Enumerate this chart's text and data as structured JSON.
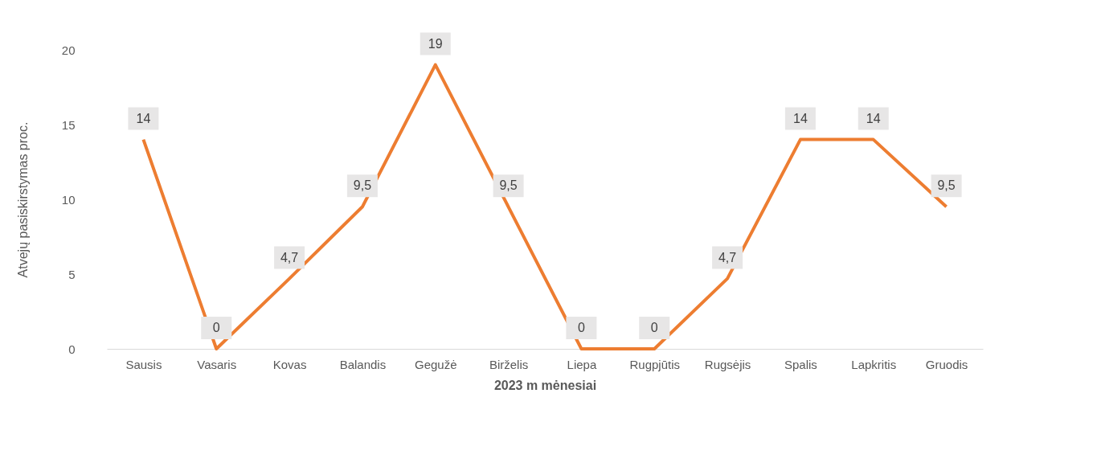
{
  "chart_data": {
    "type": "line",
    "xlabel": "2023 m mėnesiai",
    "ylabel": "Atvejų pasiskirstymas proc.",
    "categories": [
      "Sausis",
      "Vasaris",
      "Kovas",
      "Balandis",
      "Gegužė",
      "Birželis",
      "Liepa",
      "Rugpjūtis",
      "Rugsėjis",
      "Spalis",
      "Lapkritis",
      "Gruodis"
    ],
    "series": [
      {
        "color": "#ed7d31",
        "values": [
          14,
          0,
          4.7,
          9.5,
          19,
          9.5,
          0,
          0,
          4.7,
          14,
          14,
          9.5
        ],
        "value_labels": [
          "14",
          "0",
          "4,7",
          "9,5",
          "19",
          "9,5",
          "0",
          "0",
          "4,7",
          "14",
          "14",
          "9,5"
        ]
      }
    ],
    "ylim": [
      0,
      20
    ],
    "yticks": [
      0,
      5,
      10,
      15,
      20
    ],
    "grid": false,
    "marker": "none",
    "line_style": "solid"
  }
}
